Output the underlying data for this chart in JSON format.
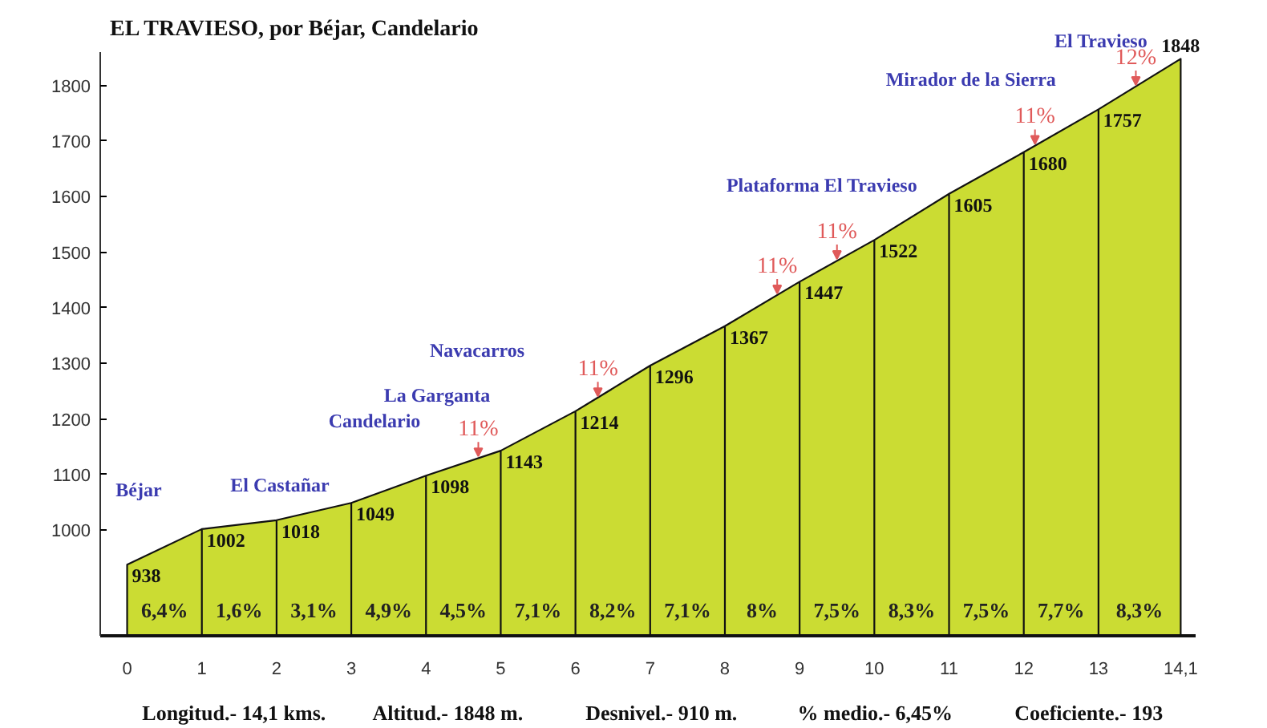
{
  "chart_data": {
    "type": "area",
    "title": "EL TRAVIESO, por Béjar, Candelario",
    "x": [
      0,
      1,
      2,
      3,
      4,
      5,
      6,
      7,
      8,
      9,
      10,
      11,
      12,
      13,
      14.1
    ],
    "values": [
      938,
      1002,
      1018,
      1049,
      1098,
      1143,
      1214,
      1296,
      1367,
      1447,
      1522,
      1605,
      1680,
      1757,
      1848
    ],
    "color": "#cbdc33",
    "data_labels": true,
    "xlim": [
      -0.36,
      14.3
    ],
    "xticks": [
      0,
      1,
      2,
      3,
      4,
      5,
      6,
      7,
      8,
      9,
      10,
      11,
      12,
      13,
      {
        "value": 14.1,
        "label": "14,1"
      }
    ],
    "ylim": [
      810,
      1860
    ],
    "yticks": [
      1000,
      1100,
      1200,
      1300,
      1400,
      1500,
      1600,
      1700,
      1800
    ],
    "annotations": [
      {
        "text": "11%",
        "x": 4.7,
        "y": 1130
      },
      {
        "text": "11%",
        "x": 6.3,
        "y": 1238
      },
      {
        "text": "11%",
        "x": 8.7,
        "y": 1423
      },
      {
        "text": "11%",
        "x": 9.5,
        "y": 1485
      },
      {
        "text": "11%",
        "x": 12.15,
        "y": 1692
      },
      {
        "text": "12%",
        "x": 13.5,
        "y": 1798
      },
      "6,4%",
      "1,6%",
      "3,1%",
      "4,9%",
      "4,5%",
      "7,1%",
      "8,2%",
      "7,1%",
      "8%",
      "7,5%",
      "8,3%",
      "7,5%",
      "7,7%",
      "8,3%",
      "Béjar",
      "El Castañar",
      "Candelario",
      "La Garganta",
      "Navacarros",
      "Plataforma El Travieso",
      "Mirador de la Sierra",
      "El Travieso",
      "Longitud.- 14,1 kms.",
      "Altitud.- 1848 m.",
      "Desnivel.- 910 m.",
      "% medio.- 6,45%",
      "Coeficiente.- 193"
    ]
  }
}
